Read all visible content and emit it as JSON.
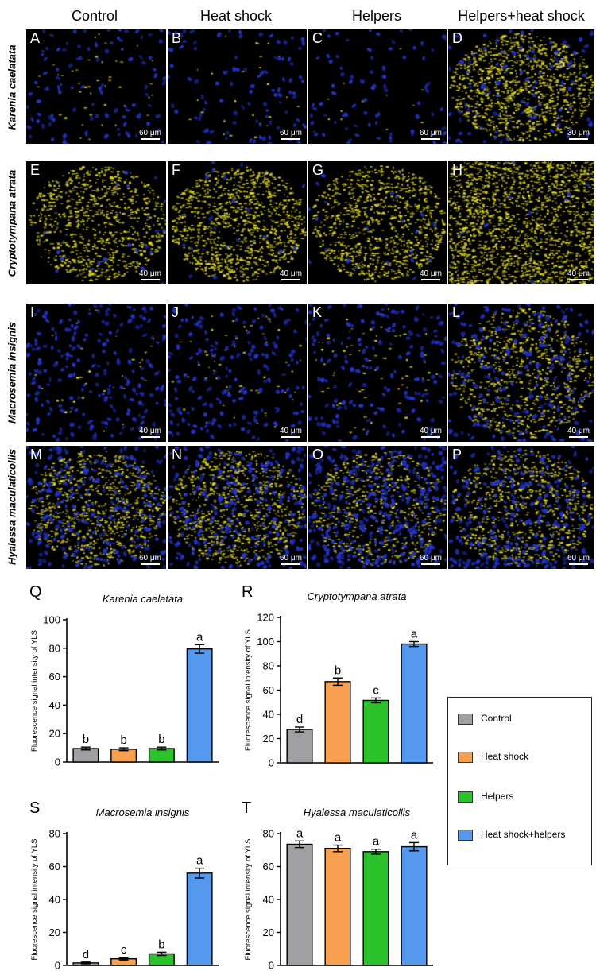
{
  "columns": [
    "Control",
    "Heat shock",
    "Helpers",
    "Helpers+heat shock"
  ],
  "rows": [
    "Karenia caelatata",
    "Cryptotympana atrata",
    "Macrosemia insignis",
    "Hyalessa maculaticollis"
  ],
  "panels": [
    {
      "label": "A",
      "scale": "60 μm"
    },
    {
      "label": "B",
      "scale": "60 μm"
    },
    {
      "label": "C",
      "scale": "60 μm"
    },
    {
      "label": "D",
      "scale": "30 μm"
    },
    {
      "label": "E",
      "scale": "40 μm"
    },
    {
      "label": "F",
      "scale": "40 μm"
    },
    {
      "label": "G",
      "scale": "40 μm"
    },
    {
      "label": "H",
      "scale": "40 μm"
    },
    {
      "label": "I",
      "scale": "40 μm"
    },
    {
      "label": "J",
      "scale": "40 μm"
    },
    {
      "label": "K",
      "scale": "40 μm"
    },
    {
      "label": "L",
      "scale": "40 μm"
    },
    {
      "label": "M",
      "scale": "60 μm"
    },
    {
      "label": "N",
      "scale": "60 μm"
    },
    {
      "label": "O",
      "scale": "60 μm"
    },
    {
      "label": "P",
      "scale": "60 μm"
    }
  ],
  "colors": {
    "control": "#a0a0a2",
    "heat_shock": "#f7a050",
    "helpers": "#2cc22c",
    "heat_shock_helpers": "#5599ee",
    "yls": "#e8e020",
    "nuclei": "#2233cc"
  },
  "legend": {
    "items": [
      {
        "label": "Control",
        "color": "#a0a0a2"
      },
      {
        "label": "Heat shock",
        "color": "#f7a050"
      },
      {
        "label": "Helpers",
        "color": "#2cc22c"
      },
      {
        "label": "Heat shock+helpers",
        "color": "#5599ee"
      }
    ]
  },
  "chart_data": [
    {
      "panel": "Q",
      "type": "bar",
      "title": "Karenia caelatata",
      "ylabel": "Fluorescence signal intensity of YLS",
      "categories": [
        "Control",
        "Heat shock",
        "Helpers",
        "Heat shock+helpers"
      ],
      "values": [
        9.5,
        9,
        9.5,
        79.5
      ],
      "errors": [
        1,
        1,
        1,
        3
      ],
      "letters": [
        "b",
        "b",
        "b",
        "a"
      ],
      "ylim": [
        0,
        100
      ],
      "yticks": [
        0,
        20,
        40,
        60,
        80,
        100
      ]
    },
    {
      "panel": "R",
      "type": "bar",
      "title": "Cryptotympana atrata",
      "ylabel": "Fluorescence signal intensity of YLS",
      "categories": [
        "Control",
        "Heat shock",
        "Helpers",
        "Heat shock+helpers"
      ],
      "values": [
        27.5,
        67,
        51.5,
        98
      ],
      "errors": [
        2,
        3,
        2,
        2
      ],
      "letters": [
        "d",
        "b",
        "c",
        "a"
      ],
      "ylim": [
        0,
        120
      ],
      "yticks": [
        0,
        20,
        40,
        60,
        80,
        100,
        120
      ]
    },
    {
      "panel": "S",
      "type": "bar",
      "title": "Macrosemia insignis",
      "ylabel": "Fluorescence signal intensity of YLS",
      "categories": [
        "Control",
        "Heat shock",
        "Helpers",
        "Heat shock+helpers"
      ],
      "values": [
        1.5,
        4,
        7,
        56
      ],
      "errors": [
        0.5,
        0.7,
        1,
        3
      ],
      "letters": [
        "d",
        "c",
        "b",
        "a"
      ],
      "ylim": [
        0,
        80
      ],
      "yticks": [
        0,
        20,
        40,
        60,
        80
      ]
    },
    {
      "panel": "T",
      "type": "bar",
      "title": "Hyalessa maculaticollis",
      "ylabel": "Fluorescence signal intensity of YLS",
      "categories": [
        "Control",
        "Heat shock",
        "Helpers",
        "Heat shock+helpers"
      ],
      "values": [
        73.5,
        71,
        69,
        72
      ],
      "errors": [
        2,
        2,
        1.5,
        2.5
      ],
      "letters": [
        "a",
        "a",
        "a",
        "a"
      ],
      "ylim": [
        0,
        80
      ],
      "yticks": [
        0,
        20,
        40,
        60,
        80
      ]
    }
  ]
}
